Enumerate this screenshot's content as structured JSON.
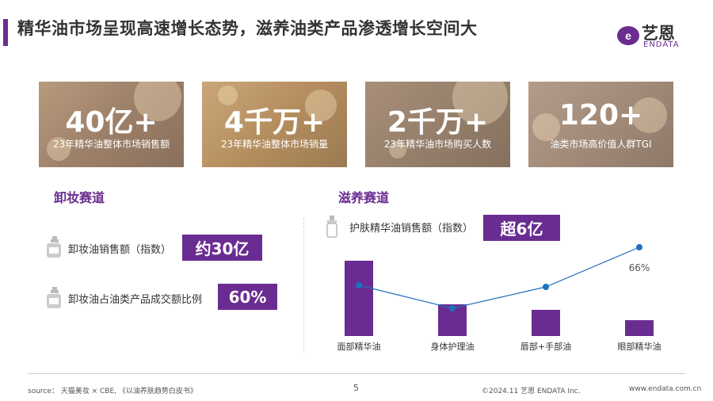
{
  "header": {
    "title": "精华油市场呈现高速增长态势，滋养油类产品渗透增长空间大",
    "logo_text": "艺恩",
    "logo_sub": "ENDATA"
  },
  "cards": [
    {
      "big": "40亿+",
      "small": "23年精华油整体市场销售额"
    },
    {
      "big": "4千万+",
      "small": "23年精华油整体市场销量"
    },
    {
      "big": "2千万+",
      "small": "23年精华油市场购买人数"
    },
    {
      "big": "120+",
      "small": "油类市场高价值人群TGI"
    }
  ],
  "left": {
    "title": "卸妆赛道",
    "metric1_label": "卸妆油销售额（指数）",
    "metric1_value": "约30亿",
    "metric2_label": "卸妆油占油类产品成交额比例",
    "metric2_value": "60%"
  },
  "right": {
    "title": "滋养赛道",
    "metric_label": "护肤精华油销售额（指数）",
    "metric_value": "超6亿"
  },
  "chart_data": {
    "type": "bar",
    "categories": [
      "面部精华油",
      "身体护理油",
      "唇部+手部油",
      "眼部精华油"
    ],
    "series": [
      {
        "values": [
          95,
          40,
          33,
          20
        ]
      },
      {
        "values": [
          64,
          35,
          62,
          112
        ]
      }
    ],
    "annotations": [
      "66%"
    ],
    "colors": {
      "bar": "#6a2c91",
      "line": "#1f6fbf"
    }
  },
  "footer": {
    "source": "source： 天猫美妆 × CBE, 《以油养肤趋势白皮书》",
    "page": "5",
    "copyright": "©2024.11  艺恩  ENDATA Inc.",
    "url": "www.endata.com.cn"
  }
}
